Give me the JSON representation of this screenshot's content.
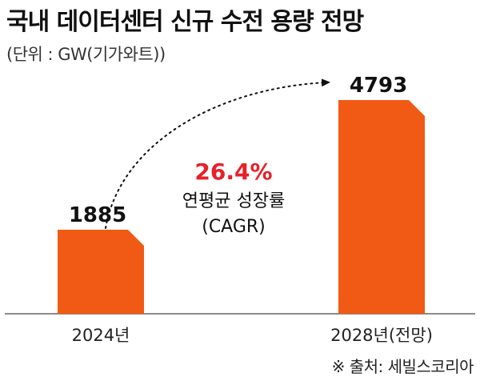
{
  "title": "국내 데이터센터 신규 수전 용량 전망",
  "unit": "(단위 : GW(기가와트))",
  "source": "※ 출처: 세빌스코리아",
  "colors": {
    "bar": "#f05a14",
    "highlight": "#e8202a",
    "text": "#111111"
  },
  "chart_data": {
    "type": "bar",
    "categories": [
      "2024년",
      "2028년(전망)"
    ],
    "values": [
      1885,
      4793
    ],
    "value_labels": [
      "1885",
      "4793"
    ],
    "ylim": [
      0,
      4793
    ],
    "grid": false,
    "annotation": {
      "value": "26.4%",
      "label": "연평균 성장률",
      "sublabel": "(CAGR)",
      "arrow": "dotted curved arrow from first bar to second bar"
    }
  }
}
